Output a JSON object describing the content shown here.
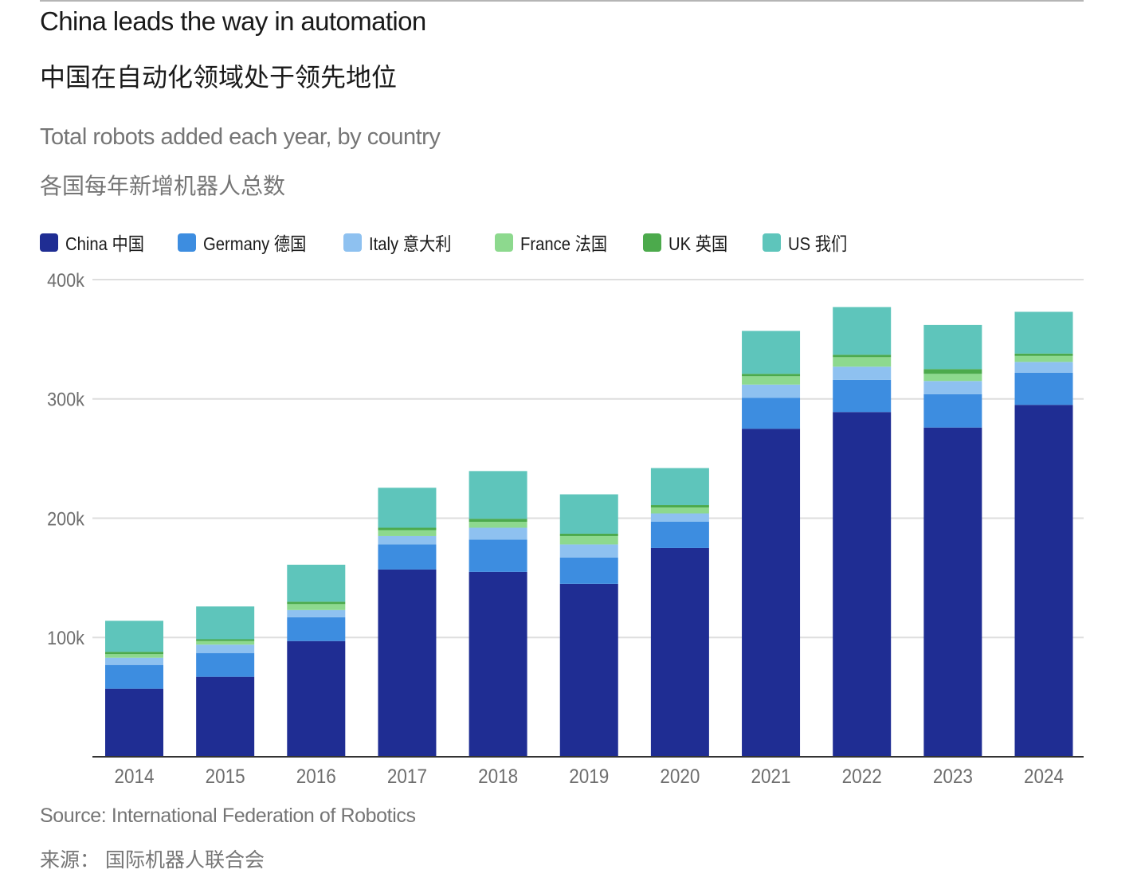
{
  "header": {
    "title": "China leads the way in automation",
    "title_cn": "中国在自动化领域处于领先地位",
    "subtitle": "Total robots added each year, by country",
    "subtitle_cn": "各国每年新增机器人总数"
  },
  "footer": {
    "source": "Source: International Federation of Robotics",
    "source_cn": "来源：  国际机器人联合会"
  },
  "chart_data": {
    "type": "bar",
    "stacked": true,
    "title": "China leads the way in automation",
    "subtitle": "Total robots added each year, by country",
    "xlabel": "",
    "ylabel": "",
    "categories": [
      "2014",
      "2015",
      "2016",
      "2017",
      "2018",
      "2019",
      "2020",
      "2021",
      "2022",
      "2023",
      "2024"
    ],
    "ylim": [
      0,
      400000
    ],
    "yticks": [
      100000,
      200000,
      300000,
      400000
    ],
    "ytick_labels": [
      "100k",
      "200k",
      "300k",
      "400k"
    ],
    "grid": true,
    "legend_position": "top-left",
    "series": [
      {
        "name": "China",
        "label": "China  中国",
        "color": "#1f2d93",
        "values": [
          57000,
          67000,
          97000,
          157000,
          155000,
          145000,
          175000,
          275000,
          289000,
          276000,
          295000
        ]
      },
      {
        "name": "Germany",
        "label": "Germany  德国",
        "color": "#3d8de0",
        "values": [
          20000,
          20000,
          20000,
          21000,
          27000,
          22000,
          22000,
          26000,
          27000,
          28000,
          27000
        ]
      },
      {
        "name": "Italy",
        "label": "Italy  意大利",
        "color": "#8ec1f0",
        "values": [
          6000,
          7000,
          6000,
          7000,
          10000,
          11000,
          7000,
          11000,
          11000,
          11000,
          9000
        ]
      },
      {
        "name": "France",
        "label": "France  法国",
        "color": "#8dd98e",
        "values": [
          3000,
          3000,
          5000,
          5000,
          5000,
          7000,
          5000,
          7000,
          8000,
          6000,
          5000
        ]
      },
      {
        "name": "UK",
        "label": "UK  英国",
        "color": "#4caa4c",
        "values": [
          2000,
          1500,
          2000,
          2000,
          2500,
          2000,
          2000,
          2000,
          2000,
          4000,
          2000
        ]
      },
      {
        "name": "US",
        "label": "US  我们",
        "color": "#5ec5bb",
        "values": [
          26000,
          27500,
          31000,
          33500,
          40000,
          33000,
          31000,
          36000,
          40000,
          37000,
          35000
        ]
      }
    ]
  }
}
